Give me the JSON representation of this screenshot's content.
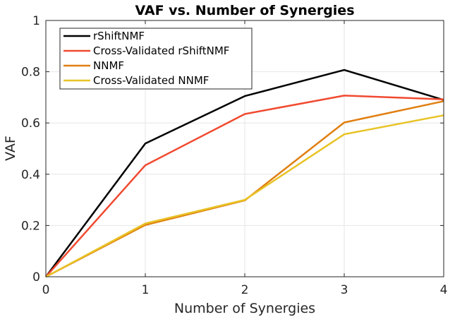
{
  "chart_data": {
    "type": "line",
    "title": "VAF vs. Number of Synergies",
    "xlabel": "Number of Synergies",
    "ylabel": "VAF",
    "xlim": [
      0,
      4
    ],
    "ylim": [
      0,
      1
    ],
    "xticks": [
      "0",
      "1",
      "2",
      "3",
      "4"
    ],
    "yticks": [
      "0",
      "0.2",
      "0.4",
      "0.6",
      "0.8",
      "1"
    ],
    "grid": true,
    "legend_position": "top-left",
    "x": [
      0,
      1,
      2,
      3,
      4
    ],
    "series": [
      {
        "name": "rShiftNMF",
        "color": "#000000",
        "values": [
          0.0,
          0.52,
          0.705,
          0.807,
          0.69
        ]
      },
      {
        "name": "Cross-Validated rShiftNMF",
        "color": "#f04a30",
        "values": [
          0.0,
          0.435,
          0.635,
          0.707,
          0.692
        ]
      },
      {
        "name": "NNMF",
        "color": "#e07f10",
        "values": [
          0.0,
          0.202,
          0.298,
          0.602,
          0.685
        ]
      },
      {
        "name": "Cross-Validated NNMF",
        "color": "#e8c326",
        "values": [
          0.0,
          0.208,
          0.3,
          0.556,
          0.63
        ]
      }
    ]
  }
}
